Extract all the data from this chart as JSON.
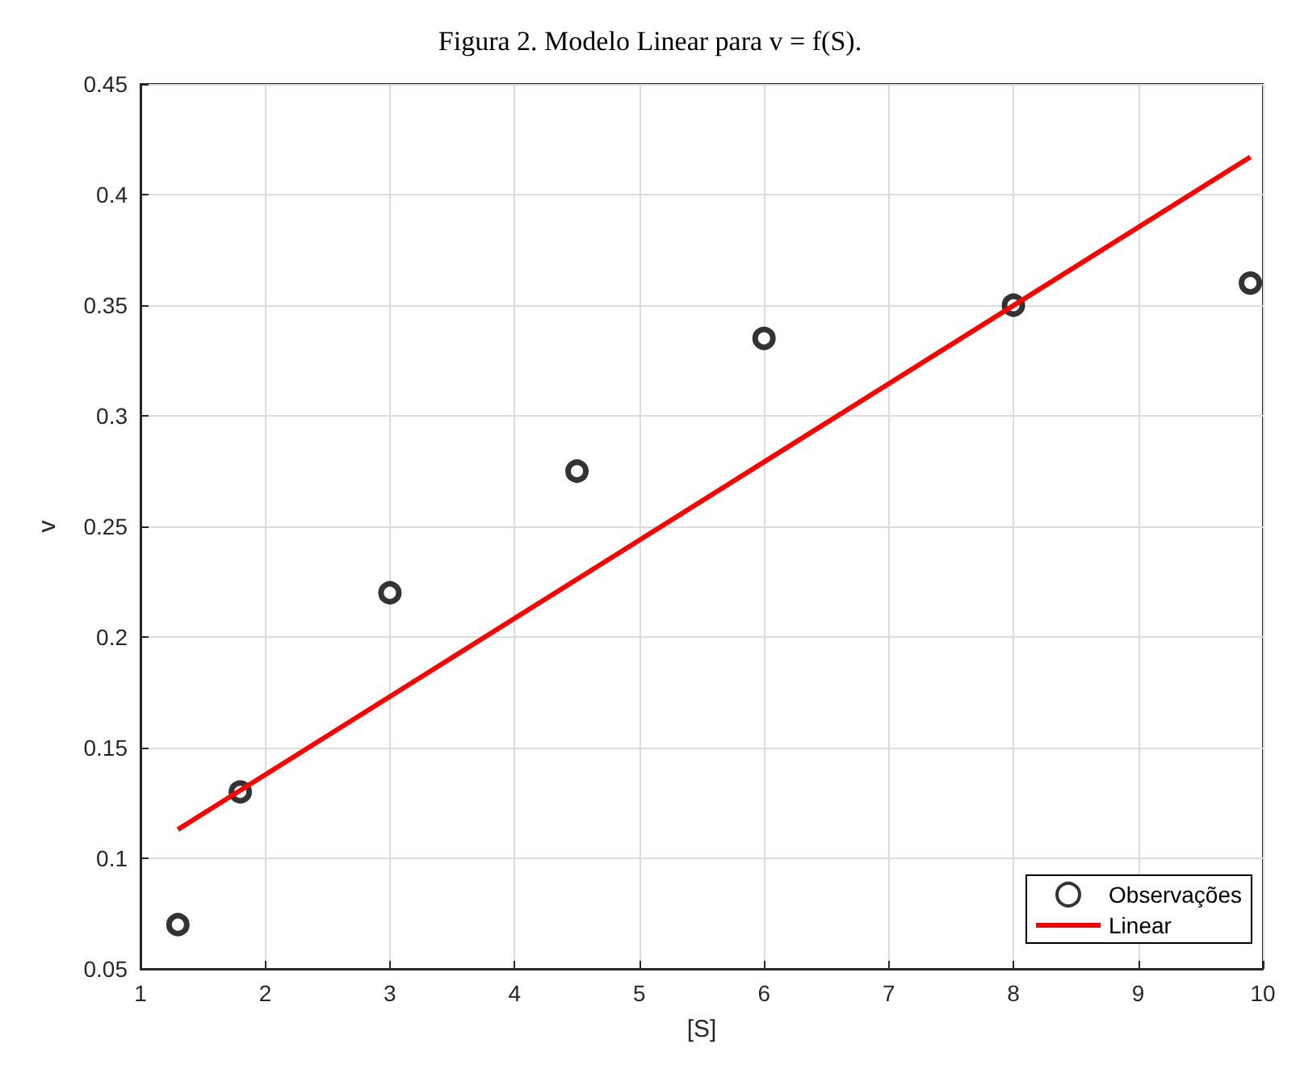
{
  "chart_data": {
    "type": "scatter",
    "title": "Figura 2. Modelo Linear para v = f(S).",
    "xlabel": "[S]",
    "ylabel": "v",
    "series": [
      {
        "name": "Observações",
        "color": "#000000",
        "marker": "circle",
        "x": [
          1.3,
          1.8,
          3,
          4.5,
          6,
          8,
          9.9
        ],
        "values": [
          0.07,
          0.13,
          0.22,
          0.275,
          0.335,
          0.35,
          0.36
        ]
      },
      {
        "name": "Linear",
        "type": "line",
        "color": "#ff0000",
        "marker": "none",
        "line_style": "solid",
        "x": [
          1.3,
          9.9
        ],
        "values": [
          0.113,
          0.417
        ]
      }
    ],
    "xlim": [
      1,
      10
    ],
    "xticks": [
      1,
      2,
      3,
      4,
      5,
      6,
      7,
      8,
      9,
      10
    ],
    "ylim": [
      0.05,
      0.45
    ],
    "yticks": [
      0.05,
      0.1,
      0.15,
      0.2,
      0.25,
      0.3,
      0.35,
      0.4,
      0.45
    ],
    "grid": true,
    "legend": "bottom right"
  }
}
